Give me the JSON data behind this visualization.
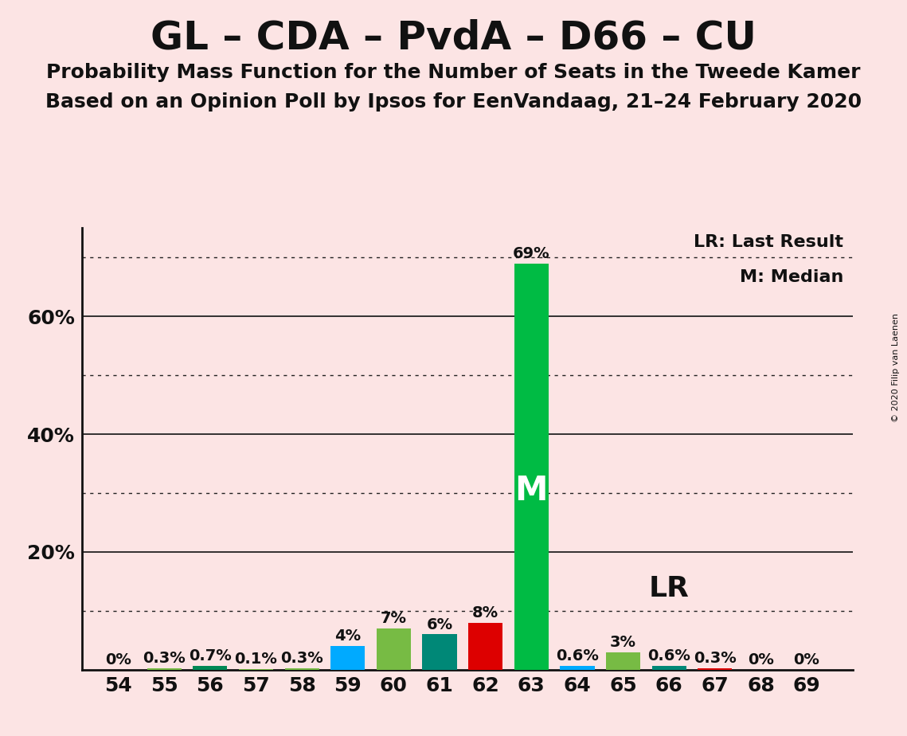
{
  "title": "GL – CDA – PvdA – D66 – CU",
  "subtitle1": "Probability Mass Function for the Number of Seats in the Tweede Kamer",
  "subtitle2": "Based on an Opinion Poll by Ipsos for EenVandaag, 21–24 February 2020",
  "copyright": "© 2020 Filip van Laenen",
  "background_color": "#fce4e4",
  "seats": [
    54,
    55,
    56,
    57,
    58,
    59,
    60,
    61,
    62,
    63,
    64,
    65,
    66,
    67,
    68,
    69
  ],
  "probabilities": [
    0.0,
    0.3,
    0.7,
    0.1,
    0.3,
    4.0,
    7.0,
    6.0,
    8.0,
    69.0,
    0.6,
    3.0,
    0.6,
    0.3,
    0.0,
    0.0
  ],
  "bar_colors": [
    "#00aabb",
    "#77bb44",
    "#008855",
    "#77bb44",
    "#77bb44",
    "#00aaff",
    "#77bb44",
    "#008877",
    "#dd0000",
    "#00bb44",
    "#00aaff",
    "#77bb44",
    "#008877",
    "#dd0000",
    "#00bb44",
    "#77bb44"
  ],
  "median_seat": 63,
  "lr_seat": 66,
  "median_label": "M",
  "lr_label": "LR",
  "legend_lr": "LR: Last Result",
  "legend_m": "M: Median",
  "ylim": [
    0,
    75
  ],
  "solid_grid_lines": [
    20,
    40,
    60
  ],
  "dotted_grid_lines": [
    10,
    30,
    50,
    70
  ],
  "axis_color": "#111111",
  "grid_color": "#222222",
  "title_fontsize": 36,
  "subtitle_fontsize": 18,
  "tick_fontsize": 18,
  "bar_label_fontsize": 14,
  "m_label_fontsize": 30,
  "lr_label_fontsize": 26,
  "legend_fontsize": 16
}
